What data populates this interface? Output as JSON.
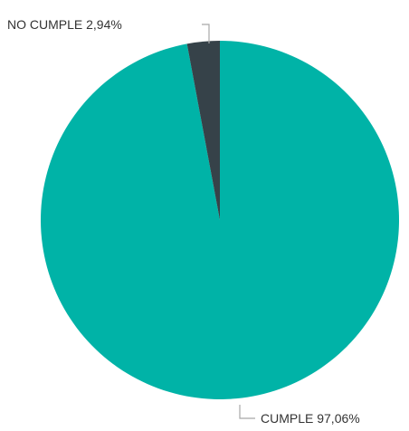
{
  "chart_data": {
    "type": "pie",
    "title": "",
    "slices": [
      {
        "label": "CUMPLE",
        "value": 97.06,
        "color": "#00b3a7"
      },
      {
        "label": "NO CUMPLE",
        "value": 2.94,
        "color": "#364249"
      }
    ],
    "data_labels": [
      "CUMPLE 97,06%",
      "NO CUMPLE 2,94%"
    ],
    "legend": "none"
  }
}
